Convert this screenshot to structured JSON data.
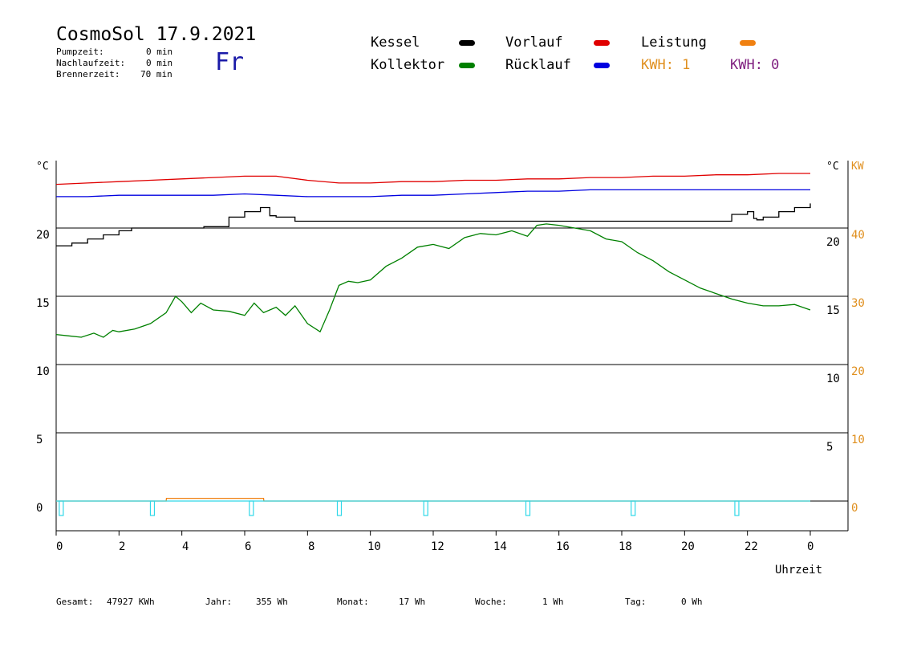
{
  "header": {
    "title": "CosmoSol 17.9.2021",
    "day": "Fr",
    "stats": [
      {
        "label": "Pumpzeit:",
        "value": "0 min"
      },
      {
        "label": "Nachlaufzeit:",
        "value": "0 min"
      },
      {
        "label": "Brennerzeit:",
        "value": "70 min"
      }
    ]
  },
  "legend": {
    "kessel": {
      "label": "Kessel",
      "color": "#000000"
    },
    "vorlauf": {
      "label": "Vorlauf",
      "color": "#e00000"
    },
    "leistung": {
      "label": "Leistung",
      "color": "#f08010"
    },
    "kollektor": {
      "label": "Kollektor",
      "color": "#008000"
    },
    "ruecklauf": {
      "label": "Rücklauf",
      "color": "#0000e0"
    },
    "kwh1": {
      "label": "KWH: 1",
      "color": "#e09020"
    },
    "kwh2": {
      "label": "KWH: 0",
      "color": "#802080"
    }
  },
  "axes": {
    "left_unit": "°C",
    "right_unit": "°C",
    "right_unit2": "KW",
    "xlabel": "Uhrzeit",
    "left_ticks": [
      "20",
      "15",
      "10",
      "5",
      "0"
    ],
    "right_ticks": [
      "20",
      "15",
      "10",
      "5"
    ],
    "right_kw_ticks": [
      "40",
      "30",
      "20",
      "10",
      "0"
    ],
    "x_ticks": [
      "0",
      "2",
      "4",
      "6",
      "8",
      "10",
      "12",
      "14",
      "16",
      "18",
      "20",
      "22",
      "0"
    ]
  },
  "footer": [
    {
      "label": "Gesamt:",
      "value": "47927 KWh"
    },
    {
      "label": "Jahr:",
      "value": "355 Wh"
    },
    {
      "label": "Monat:",
      "value": "17 Wh"
    },
    {
      "label": "Woche:",
      "value": "1 Wh"
    },
    {
      "label": "Tag:",
      "value": "0 Wh"
    }
  ],
  "chart_data": {
    "type": "line",
    "x_unit": "hour",
    "xlim": [
      0,
      24
    ],
    "ylim": [
      -2,
      25
    ],
    "series": [
      {
        "name": "Vorlauf",
        "color": "#e00000",
        "x": [
          0,
          1,
          2,
          3,
          4,
          5,
          6,
          7,
          8,
          9,
          10,
          11,
          12,
          13,
          14,
          15,
          16,
          17,
          18,
          19,
          20,
          21,
          22,
          23,
          24
        ],
        "y": [
          23.2,
          23.3,
          23.4,
          23.5,
          23.6,
          23.7,
          23.8,
          23.8,
          23.5,
          23.3,
          23.3,
          23.4,
          23.4,
          23.5,
          23.5,
          23.6,
          23.6,
          23.7,
          23.7,
          23.8,
          23.8,
          23.9,
          23.9,
          24.0,
          24.0
        ]
      },
      {
        "name": "Rücklauf",
        "color": "#0000e0",
        "x": [
          0,
          1,
          2,
          3,
          4,
          5,
          6,
          7,
          8,
          9,
          10,
          11,
          12,
          13,
          14,
          15,
          16,
          17,
          18,
          19,
          20,
          21,
          22,
          23,
          24
        ],
        "y": [
          22.3,
          22.3,
          22.4,
          22.4,
          22.4,
          22.4,
          22.5,
          22.4,
          22.3,
          22.3,
          22.3,
          22.4,
          22.4,
          22.5,
          22.6,
          22.7,
          22.7,
          22.8,
          22.8,
          22.8,
          22.8,
          22.8,
          22.8,
          22.8,
          22.8
        ]
      },
      {
        "name": "Kessel",
        "color": "#000000",
        "x": [
          0,
          0.5,
          1,
          1.5,
          2,
          2.4,
          2.41,
          4.6,
          4.7,
          5.5,
          6,
          6.5,
          6.6,
          6.8,
          7,
          7.5,
          7.6,
          8,
          10,
          12,
          14,
          16,
          18,
          20,
          20.9,
          21.5,
          22,
          22.2,
          22.3,
          22.5,
          23,
          23.5,
          24
        ],
        "y": [
          18.7,
          18.9,
          19.2,
          19.5,
          19.8,
          20.0,
          20.0,
          20.0,
          20.1,
          20.8,
          21.2,
          21.5,
          21.5,
          20.9,
          20.8,
          20.8,
          20.5,
          20.5,
          20.5,
          20.5,
          20.5,
          20.5,
          20.5,
          20.5,
          20.5,
          21.0,
          21.2,
          20.7,
          20.6,
          20.8,
          21.2,
          21.5,
          21.8
        ]
      },
      {
        "name": "Kollektor",
        "color": "#008000",
        "x": [
          0,
          0.4,
          0.8,
          1.2,
          1.5,
          1.8,
          2,
          2.5,
          3,
          3.5,
          3.8,
          4,
          4.3,
          4.6,
          5,
          5.5,
          6,
          6.3,
          6.6,
          7,
          7.3,
          7.6,
          8,
          8.4,
          8.7,
          9,
          9.3,
          9.6,
          10,
          10.5,
          11,
          11.5,
          12,
          12.5,
          13,
          13.5,
          14,
          14.5,
          15,
          15.3,
          15.6,
          16,
          16.5,
          17,
          17.5,
          18,
          18.5,
          19,
          19.5,
          20,
          20.5,
          21,
          21.5,
          22,
          22.5,
          23,
          23.5,
          24
        ],
        "y": [
          12.2,
          12.1,
          12.0,
          12.3,
          12.0,
          12.5,
          12.4,
          12.6,
          13.0,
          13.8,
          15.0,
          14.6,
          13.8,
          14.5,
          14.0,
          13.9,
          13.6,
          14.5,
          13.8,
          14.2,
          13.6,
          14.3,
          13.0,
          12.4,
          14.0,
          15.8,
          16.1,
          16.0,
          16.2,
          17.2,
          17.8,
          18.6,
          18.8,
          18.5,
          19.3,
          19.6,
          19.5,
          19.8,
          19.4,
          20.2,
          20.3,
          20.2,
          20.0,
          19.8,
          19.2,
          19.0,
          18.2,
          17.6,
          16.8,
          16.2,
          15.6,
          15.2,
          14.8,
          14.5,
          14.3,
          14.3,
          14.4,
          14.0
        ]
      },
      {
        "name": "Leistung",
        "color": "#f08010",
        "x": [
          0,
          3.5,
          3.51,
          6.6,
          6.61,
          24
        ],
        "y": [
          0,
          0,
          0.2,
          0.2,
          0,
          0
        ]
      }
    ]
  }
}
